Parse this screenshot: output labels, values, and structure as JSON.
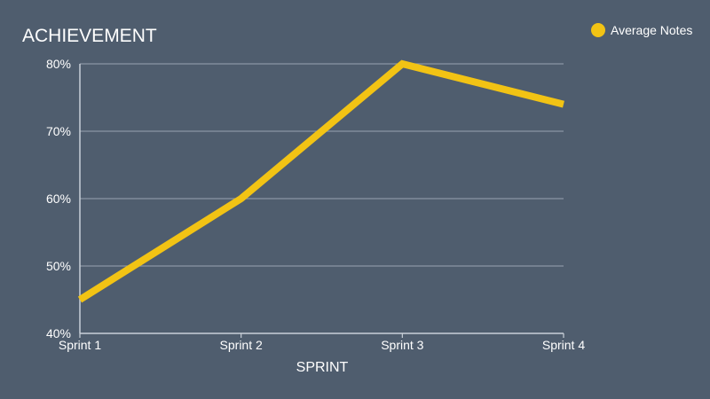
{
  "chart_data": {
    "type": "line",
    "title": "ACHIEVEMENT",
    "xlabel": "SPRINT",
    "ylabel": "",
    "categories": [
      "Sprint 1",
      "Sprint 2",
      "Sprint 3",
      "Sprint 4"
    ],
    "series": [
      {
        "name": "Average Notes",
        "values": [
          45,
          60,
          80,
          74
        ],
        "color": "#f2c314"
      }
    ],
    "ylim": [
      40,
      80
    ],
    "yticks": [
      40,
      50,
      60,
      70,
      80
    ],
    "ytick_labels": [
      "40%",
      "50%",
      "60%",
      "70%",
      "80%"
    ],
    "grid": true,
    "legend_position": "top-right",
    "colors": {
      "background": "#4f5d6e",
      "grid": "#8a96a4",
      "axis": "#c9d0d8",
      "text": "#ffffff"
    }
  }
}
